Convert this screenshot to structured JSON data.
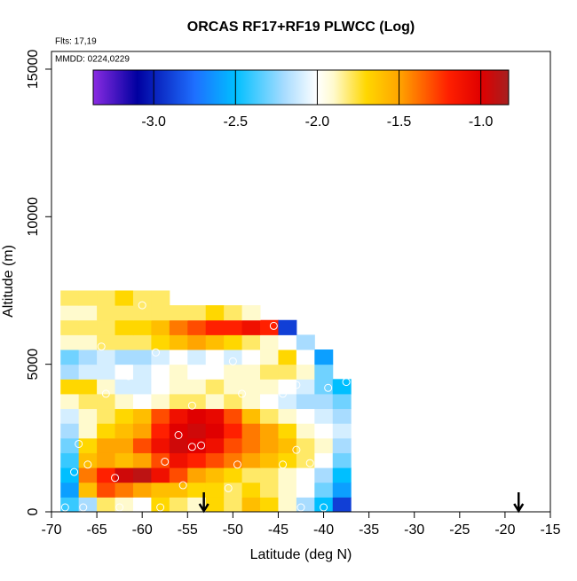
{
  "chart_data": {
    "type": "heatmap",
    "title": "ORCAS RF17+RF19 PLWCC (Log)",
    "annotations": [
      "Flts: 17,19",
      "MMDD: 0224,0229"
    ],
    "x_label": "Latitude (deg N)",
    "y_label": "Altitude (m)",
    "xlim": [
      -70,
      -15
    ],
    "xticks": [
      -70,
      -65,
      -60,
      -55,
      -50,
      -45,
      -40,
      -35,
      -30,
      -25,
      -20,
      -15
    ],
    "ylim": [
      0,
      15600
    ],
    "yticks": [
      0,
      5000,
      10000,
      15000
    ],
    "lat_edges": [
      -69,
      -67,
      -65,
      -63,
      -61,
      -59,
      -57,
      -55,
      -53,
      -51,
      -49,
      -47,
      -45,
      -43,
      -41,
      -39,
      -37
    ],
    "alt_edges": [
      0,
      500,
      1000,
      1500,
      2000,
      2500,
      3000,
      3500,
      4000,
      4500,
      5000,
      5500,
      6000,
      6500,
      7000,
      7500
    ],
    "values": [
      [
        -2.4,
        -2.2,
        -1.8,
        -1.9,
        -2.0,
        -1.7,
        -1.8,
        -1.9,
        -1.7,
        -1.8,
        -1.6,
        -1.7,
        -1.9,
        -2.2,
        -2.5,
        -2.9
      ],
      [
        -2.6,
        -1.6,
        -1.3,
        -1.4,
        -1.5,
        -1.6,
        -1.6,
        -1.7,
        -1.7,
        -1.8,
        -1.7,
        -1.8,
        -1.9,
        -2.0,
        -2.3,
        -2.6
      ],
      [
        -2.5,
        -1.4,
        -1.2,
        -0.95,
        -0.9,
        -1.1,
        -1.3,
        -1.5,
        -1.6,
        -1.7,
        -1.8,
        -1.8,
        -1.9,
        -2.0,
        -2.2,
        -2.5
      ],
      [
        -2.4,
        -1.6,
        -1.5,
        -1.6,
        -1.5,
        -1.3,
        -1.1,
        -1.2,
        -1.3,
        -1.4,
        -1.5,
        -1.6,
        -1.7,
        -1.8,
        -2.0,
        -2.3
      ],
      [
        -2.3,
        -1.7,
        -1.5,
        -1.5,
        -1.3,
        -1.1,
        -0.95,
        -1.0,
        -1.1,
        -1.3,
        -1.4,
        -1.5,
        -1.6,
        -1.8,
        -1.9,
        -2.2
      ],
      [
        -2.2,
        -1.9,
        -1.7,
        -1.6,
        -1.5,
        -1.2,
        -1.0,
        -0.95,
        -1.0,
        -1.2,
        -1.4,
        -1.5,
        -1.7,
        -1.9,
        -2.0,
        -2.1
      ],
      [
        -2.1,
        -1.9,
        -1.8,
        -1.7,
        -1.6,
        -1.3,
        -1.1,
        -1.0,
        -1.05,
        -1.3,
        -1.6,
        -1.8,
        -1.9,
        -2.0,
        -2.1,
        -2.2
      ],
      [
        -1.9,
        -1.8,
        -1.8,
        -1.9,
        -2.0,
        -1.9,
        -1.8,
        -1.8,
        -1.9,
        -1.8,
        -1.9,
        -2.0,
        -2.1,
        -2.2,
        -2.2,
        -2.3
      ],
      [
        -1.7,
        -1.7,
        -1.9,
        -2.1,
        -2.1,
        -2.0,
        -1.9,
        -1.9,
        -1.8,
        -1.9,
        -1.9,
        -1.9,
        -2.0,
        -2.1,
        -2.3,
        -2.5
      ],
      [
        -2.2,
        -2.1,
        -2.1,
        -2.0,
        -2.1,
        -2.0,
        -1.9,
        -2.0,
        -2.0,
        -1.9,
        -1.9,
        -1.8,
        -1.8,
        -1.9,
        -2.3,
        null
      ],
      [
        -2.3,
        -2.2,
        -2.1,
        -2.2,
        -2.2,
        -2.1,
        -2.0,
        -2.1,
        -2.0,
        -2.1,
        -2.0,
        -1.9,
        -1.7,
        -2.0,
        -2.6,
        null
      ],
      [
        -1.9,
        -1.9,
        -1.8,
        -1.8,
        -1.8,
        -1.7,
        -1.6,
        -1.5,
        -1.6,
        -1.7,
        -1.8,
        -1.9,
        -2.0,
        -2.2,
        null,
        null
      ],
      [
        -1.8,
        -1.8,
        -1.8,
        -1.7,
        -1.7,
        -1.6,
        -1.4,
        -1.3,
        -1.2,
        -1.2,
        -1.1,
        -1.2,
        -2.9,
        null,
        null,
        null
      ],
      [
        -1.9,
        -1.9,
        -1.8,
        -1.8,
        -1.8,
        -1.8,
        -1.8,
        -1.8,
        -1.7,
        -1.8,
        -1.9,
        null,
        null,
        null,
        null,
        null
      ],
      [
        -1.8,
        -1.8,
        -1.8,
        -1.7,
        -1.8,
        -1.8,
        null,
        null,
        null,
        null,
        null,
        null,
        null,
        null,
        null,
        null
      ]
    ],
    "colormap": {
      "values": [
        -3.37,
        -3.1,
        -2.75,
        -2.5,
        -2.2,
        -2.0,
        -1.9,
        -1.7,
        -1.5,
        -1.2,
        -1.0,
        -0.83
      ],
      "colors": [
        "#8a2be2",
        "#0000a0",
        "#1e6fff",
        "#00bfff",
        "#a8dcff",
        "#ffffff",
        "#fffacd",
        "#ffd700",
        "#ffa500",
        "#ff2000",
        "#e00000",
        "#a52020"
      ]
    },
    "colorbar_lim": [
      -3.37,
      -0.83
    ],
    "colorbar_ticks": [
      {
        "value": -3.0,
        "label": "-3.0"
      },
      {
        "value": -2.5,
        "label": "-2.5"
      },
      {
        "value": -2.0,
        "label": "-2.0"
      },
      {
        "value": -1.5,
        "label": "-1.5"
      },
      {
        "value": -1.0,
        "label": "-1.0"
      }
    ],
    "observations": {
      "x": [
        -68.5,
        -66.5,
        -62.5,
        -58,
        -42.5,
        -40,
        -67.5,
        -66,
        -63,
        -57.5,
        -55.5,
        -50.5,
        -56,
        -54.5,
        -53.5,
        -54.5,
        -49.5,
        -44.5,
        -43,
        -41.5,
        -40,
        -61.5,
        -64,
        -58.5,
        -56,
        -52.5,
        -50,
        -49,
        -44.5,
        -43,
        -39.5,
        -37.5,
        -64.5,
        -60,
        -45.5,
        -41.5,
        -41,
        -67,
        -60.5
      ],
      "y": [
        150,
        150,
        150,
        150,
        150,
        150,
        1350,
        1600,
        1150,
        1700,
        900,
        800,
        2600,
        2200,
        2250,
        3600,
        1600,
        1600,
        2100,
        1650,
        1800,
        4600,
        4000,
        5400,
        5300,
        4900,
        5100,
        4000,
        4000,
        4300,
        4200,
        4400,
        5600,
        7000,
        6300,
        6300,
        6300,
        2300,
        3700
      ]
    },
    "arrows": [
      -53.2,
      -18.5
    ]
  }
}
